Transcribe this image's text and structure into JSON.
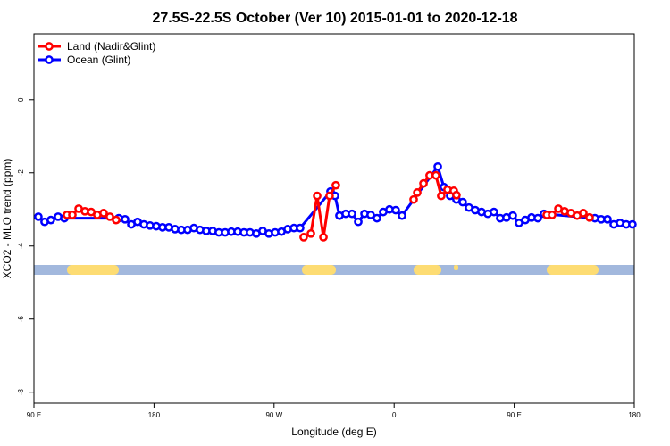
{
  "chart_data": {
    "type": "line",
    "title": "27.5S-22.5S October (Ver 10)   2015-01-01 to 2020-12-18",
    "x_label": "Longitude (deg E)",
    "y_label": "XCO2 - MLO trend (ppm)",
    "xlim": [
      90,
      540
    ],
    "ylim": [
      -8.3,
      1.8
    ],
    "xticks": [
      {
        "value": 90,
        "label": "90 E"
      },
      180,
      {
        "value": 270,
        "label": "90 W"
      },
      {
        "value": 360,
        "label": "0"
      },
      {
        "value": 450,
        "label": "90 E"
      },
      {
        "value": 540,
        "label": "180"
      }
    ],
    "yticks": [
      0,
      -2,
      -4,
      -6,
      -8
    ],
    "legend": "top-left",
    "series": [
      {
        "name": "Land (Nadir&Glint)",
        "color": "#ff0000",
        "x": [
          114.8,
          118.8,
          123.5,
          128.2,
          132.9,
          137.5,
          142.2,
          146.9,
          151.6,
          240,
          292.2,
          297.6,
          302.3,
          307.0,
          311.6,
          316.3,
          340,
          374.6,
          377.3,
          382.0,
          386.6,
          391.3,
          395.3,
          400.0,
          404.7,
          406.7,
          450,
          474.4,
          478.4,
          483.1,
          487.8,
          492.5,
          497.2,
          501.8,
          506.5
        ],
        "values": [
          -3.15,
          -3.15,
          -2.98,
          -3.05,
          -3.07,
          -3.15,
          -3.1,
          -3.2,
          -3.29,
          null,
          -3.76,
          -3.66,
          -2.63,
          -3.76,
          -2.63,
          -2.34,
          null,
          -2.73,
          -2.54,
          -2.29,
          -2.07,
          -2.07,
          -2.63,
          -2.46,
          -2.49,
          -2.61,
          null,
          -3.15,
          -3.15,
          -2.98,
          -3.05,
          -3.1,
          -3.17,
          -3.1,
          -3.22
        ]
      },
      {
        "name": "Ocean (Glint)",
        "color": "#0000ff",
        "x": [
          93.3,
          98.0,
          102.7,
          108.1,
          112.8,
          153.6,
          158.3,
          163.0,
          167.7,
          172.4,
          177.0,
          181.7,
          186.4,
          191.1,
          195.8,
          200.5,
          205.2,
          209.9,
          214.5,
          219.2,
          223.9,
          228.6,
          233.3,
          238.0,
          242.7,
          247.4,
          252.0,
          256.7,
          261.4,
          266.1,
          270.8,
          275.5,
          280.2,
          284.9,
          289.5,
          312.3,
          315.7,
          319.0,
          323.7,
          328.4,
          333.1,
          337.8,
          342.4,
          347.1,
          351.8,
          356.5,
          361.2,
          365.9,
          392.7,
          397.3,
          402.0,
          406.7,
          411.4,
          416.1,
          420.8,
          425.5,
          430.2,
          434.8,
          439.5,
          444.2,
          448.9,
          453.6,
          458.3,
          463.0,
          467.7,
          472.3,
          510.5,
          515.2,
          519.9,
          524.6,
          529.3,
          534.0,
          538.6
        ],
        "values": [
          -3.2,
          -3.34,
          -3.29,
          -3.2,
          -3.24,
          -3.24,
          -3.27,
          -3.41,
          -3.34,
          -3.41,
          -3.44,
          -3.46,
          -3.49,
          -3.49,
          -3.54,
          -3.56,
          -3.56,
          -3.51,
          -3.56,
          -3.59,
          -3.59,
          -3.63,
          -3.63,
          -3.61,
          -3.61,
          -3.63,
          -3.63,
          -3.66,
          -3.59,
          -3.66,
          -3.63,
          -3.61,
          -3.54,
          -3.51,
          -3.51,
          -2.51,
          -2.63,
          -3.17,
          -3.12,
          -3.12,
          -3.34,
          -3.12,
          -3.15,
          -3.24,
          -3.07,
          -3.0,
          -3.02,
          -3.17,
          -1.83,
          -2.39,
          -2.63,
          -2.73,
          -2.8,
          -2.95,
          -3.02,
          -3.07,
          -3.12,
          -3.07,
          -3.24,
          -3.22,
          -3.17,
          -3.37,
          -3.29,
          -3.22,
          -3.24,
          -3.12,
          -3.24,
          -3.27,
          -3.27,
          -3.41,
          -3.37,
          -3.41,
          -3.41
        ]
      }
    ]
  }
}
